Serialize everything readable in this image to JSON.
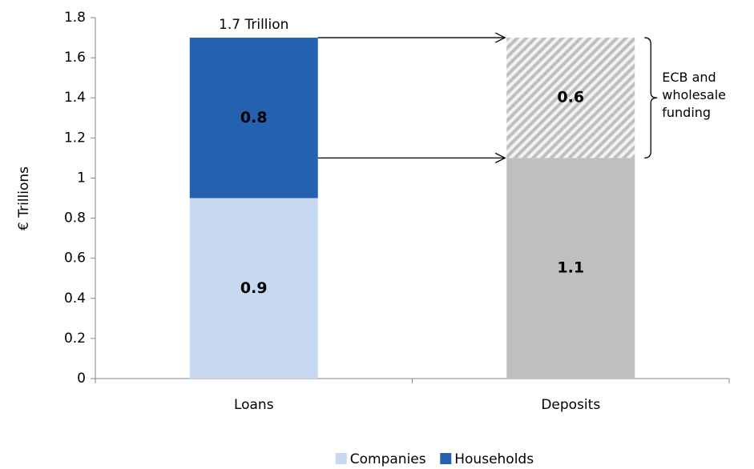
{
  "chart_data": {
    "type": "stacked_bar",
    "y_label": "€ Trillions",
    "categories": [
      "Loans",
      "Deposits"
    ],
    "series": [
      {
        "name": "Companies",
        "color": "#c6d9f1",
        "values": [
          0.9,
          null
        ]
      },
      {
        "name": "Households",
        "color": "#2462b0",
        "values": [
          0.8,
          null
        ]
      },
      {
        "color": "#bfbfbf",
        "values": [
          null,
          1.1
        ]
      },
      {
        "color": "#bfbfbf",
        "pattern": "hatch",
        "values": [
          null,
          0.6
        ]
      }
    ],
    "annotations": [
      "1.7 Trillion",
      "ECB and wholesale funding"
    ],
    "ylim": [
      0,
      1.8
    ],
    "yticks": [
      0,
      0.2,
      0.4,
      0.6,
      0.8,
      1,
      1.2,
      1.4,
      1.6,
      1.8
    ],
    "legend": "bottom"
  }
}
